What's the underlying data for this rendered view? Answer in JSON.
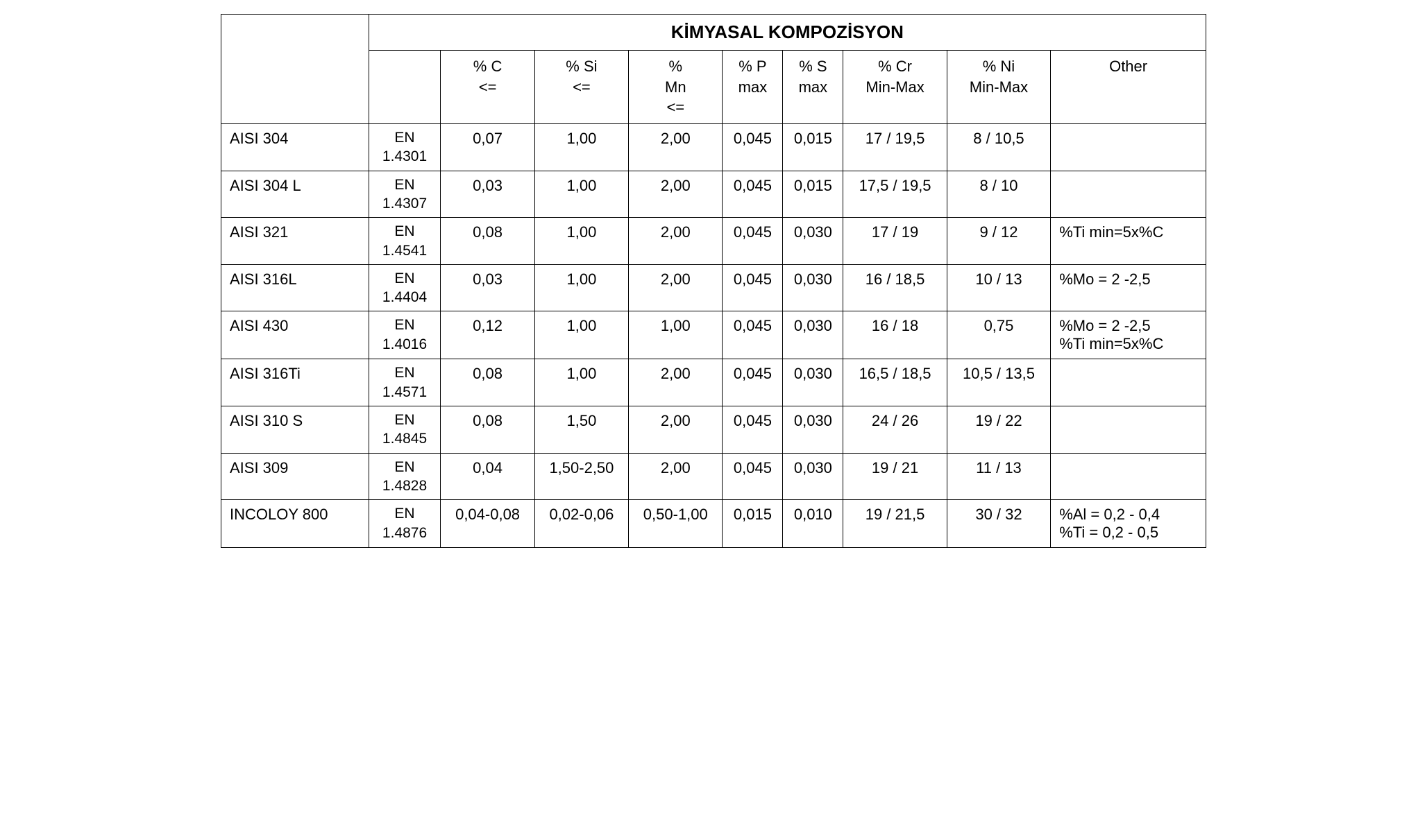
{
  "table": {
    "title": "KİMYASAL KOMPOZİSYON",
    "columns": {
      "c": "% C\n<=",
      "si": "% Si\n<=",
      "mn": "%\nMn\n<=",
      "p": "% P\nmax",
      "s": "% S\nmax",
      "cr": "% Cr\nMin-Max",
      "ni": "% Ni\nMin-Max",
      "other": "Other"
    },
    "rows": [
      {
        "label": "AISI 304",
        "en": "EN\n1.4301",
        "c": "0,07",
        "si": "1,00",
        "mn": "2,00",
        "p": "0,045",
        "s": "0,015",
        "cr": "17 / 19,5",
        "ni": "8 / 10,5",
        "other": ""
      },
      {
        "label": "AISI 304 L",
        "en": "EN\n1.4307",
        "c": "0,03",
        "si": "1,00",
        "mn": "2,00",
        "p": "0,045",
        "s": "0,015",
        "cr": "17,5 / 19,5",
        "ni": "8 / 10",
        "other": ""
      },
      {
        "label": "AISI 321",
        "en": "EN\n1.4541",
        "c": "0,08",
        "si": "1,00",
        "mn": "2,00",
        "p": "0,045",
        "s": "0,030",
        "cr": "17 / 19",
        "ni": "9 / 12",
        "other": "%Ti min=5x%C"
      },
      {
        "label": "AISI 316L",
        "en": "EN\n1.4404",
        "c": "0,03",
        "si": "1,00",
        "mn": "2,00",
        "p": "0,045",
        "s": "0,030",
        "cr": "16 / 18,5",
        "ni": "10 / 13",
        "other": "%Mo = 2 -2,5"
      },
      {
        "label": "AISI 430",
        "en": "EN\n1.4016",
        "c": "0,12",
        "si": "1,00",
        "mn": "1,00",
        "p": "0,045",
        "s": "0,030",
        "cr": "16 / 18",
        "ni": "0,75",
        "other": "%Mo = 2 -2,5\n%Ti min=5x%C"
      },
      {
        "label": "AISI 316Ti",
        "en": "EN\n1.4571",
        "c": "0,08",
        "si": "1,00",
        "mn": "2,00",
        "p": "0,045",
        "s": "0,030",
        "cr": "16,5 / 18,5",
        "ni": "10,5 / 13,5",
        "other": ""
      },
      {
        "label": "AISI 310 S",
        "en": "EN\n1.4845",
        "c": "0,08",
        "si": "1,50",
        "mn": "2,00",
        "p": "0,045",
        "s": "0,030",
        "cr": "24 / 26",
        "ni": "19 / 22",
        "other": ""
      },
      {
        "label": "AISI 309",
        "en": "EN\n1.4828",
        "c": "0,04",
        "si": "1,50-2,50",
        "mn": "2,00",
        "p": "0,045",
        "s": "0,030",
        "cr": "19 / 21",
        "ni": "11 / 13",
        "other": ""
      },
      {
        "label": "INCOLOY 800",
        "en": "EN\n1.4876",
        "c": "0,04-0,08",
        "si": "0,02-0,06",
        "mn": "0,50-1,00",
        "p": "0,015",
        "s": "0,010",
        "cr": "19 / 21,5",
        "ni": "30 / 32",
        "other": "%Al = 0,2 - 0,4\n%Ti = 0,2 - 0,5"
      }
    ],
    "styling": {
      "border_color": "#000000",
      "background_color": "#ffffff",
      "text_color": "#000000",
      "title_fontsize": 26,
      "header_fontsize": 22,
      "cell_fontsize": 22,
      "font_family": "Arial, Helvetica, sans-serif"
    }
  }
}
